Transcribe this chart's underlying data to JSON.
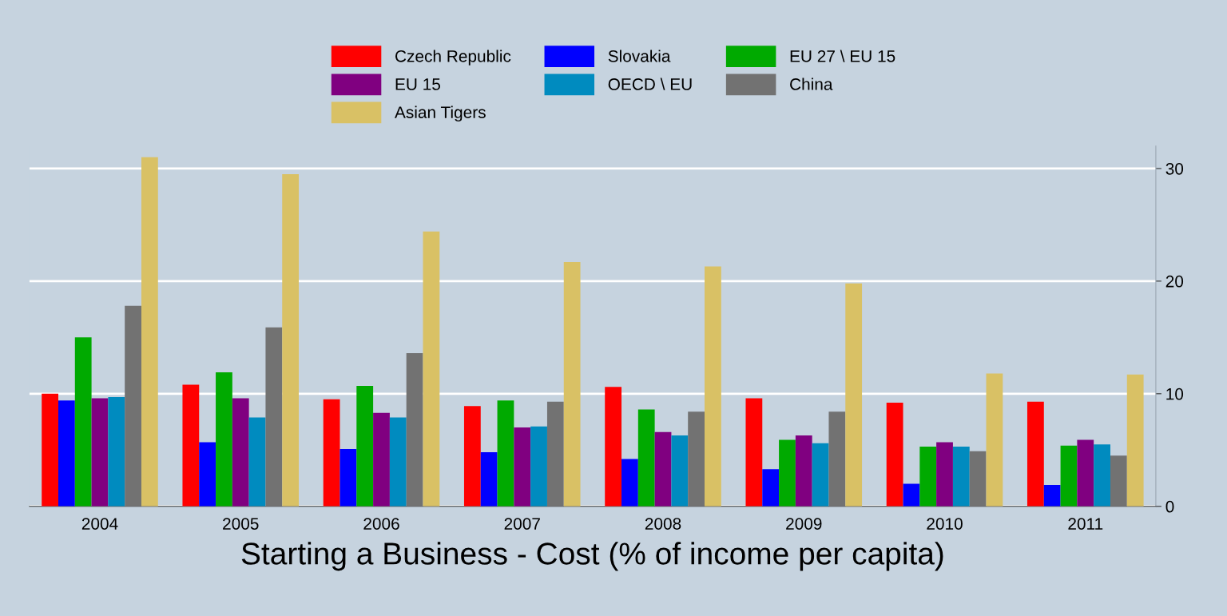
{
  "chart_data": {
    "type": "bar",
    "xlabel": "Starting a Business - Cost (% of income per capita)",
    "categories": [
      "2004",
      "2005",
      "2006",
      "2007",
      "2008",
      "2009",
      "2010",
      "2011"
    ],
    "series": [
      {
        "name": "Czech Republic",
        "color": "#ff0000",
        "values": [
          10.0,
          10.8,
          9.5,
          8.9,
          10.6,
          9.6,
          9.2,
          9.3
        ]
      },
      {
        "name": "Slovakia",
        "color": "#0000ff",
        "values": [
          9.4,
          5.7,
          5.1,
          4.8,
          4.2,
          3.3,
          2.0,
          1.9
        ]
      },
      {
        "name": "EU 27 \\ EU 15",
        "color": "#00aa00",
        "values": [
          15.0,
          11.9,
          10.7,
          9.4,
          8.6,
          5.9,
          5.3,
          5.4
        ]
      },
      {
        "name": "EU 15",
        "color": "#800080",
        "values": [
          9.6,
          9.6,
          8.3,
          7.0,
          6.6,
          6.3,
          5.7,
          5.9
        ]
      },
      {
        "name": "OECD \\ EU",
        "color": "#008bbf",
        "values": [
          9.7,
          7.9,
          7.9,
          7.1,
          6.3,
          5.6,
          5.3,
          5.5
        ]
      },
      {
        "name": "China",
        "color": "#727272",
        "values": [
          17.8,
          15.9,
          13.6,
          9.3,
          8.4,
          8.4,
          4.9,
          4.5
        ]
      },
      {
        "name": "Asian Tigers",
        "color": "#d9c165",
        "values": [
          31.0,
          29.5,
          24.4,
          21.7,
          21.3,
          19.8,
          11.8,
          11.7
        ]
      }
    ],
    "ylim": [
      0,
      32
    ],
    "yticks": [
      0,
      10,
      20,
      30
    ],
    "grid": "y",
    "legend": "top"
  }
}
